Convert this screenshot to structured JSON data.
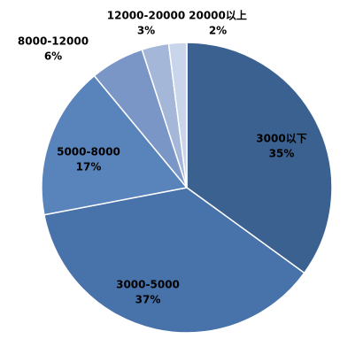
{
  "chart_data": {
    "type": "pie",
    "categories": [
      "3000以下",
      "3000-5000",
      "5000-8000",
      "8000-12000",
      "12000-20000",
      "20000以上"
    ],
    "values": [
      35,
      37,
      17,
      6,
      3,
      2
    ],
    "value_labels": [
      "35%",
      "37%",
      "17%",
      "6%",
      "3%",
      "2%"
    ],
    "colors": [
      "#3b6191",
      "#4872aa",
      "#5983bb",
      "#7a96c7",
      "#a4b7d9",
      "#c8d5ea"
    ]
  }
}
